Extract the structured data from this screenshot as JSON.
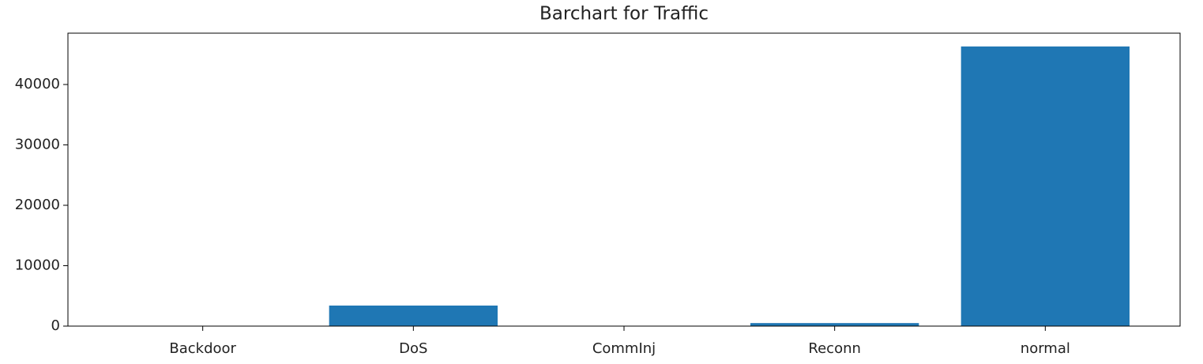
{
  "chart_data": {
    "type": "bar",
    "title": "Barchart for Traffic",
    "categories": [
      "Backdoor",
      "DoS",
      "CommInj",
      "Reconn",
      "normal"
    ],
    "values": [
      0,
      3400,
      0,
      500,
      46300
    ],
    "color": "#1f77b4",
    "ylim": [
      0,
      48500
    ],
    "yticks": [
      0,
      10000,
      20000,
      30000,
      40000
    ]
  }
}
